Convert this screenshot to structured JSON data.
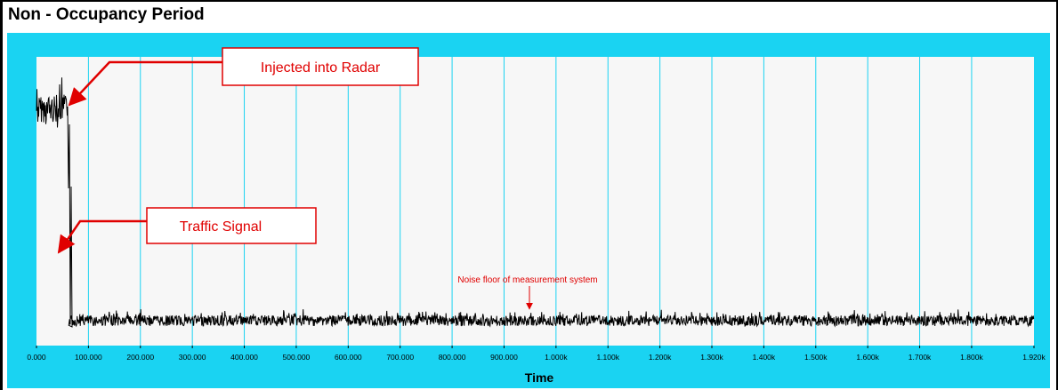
{
  "panel": {
    "title": "Non - Occupancy Period"
  },
  "chart_data": {
    "type": "line",
    "xlabel": "Time",
    "ylabel": "",
    "xlim": [
      0,
      1920000
    ],
    "grid": true,
    "tick_values": [
      0,
      100000,
      200000,
      300000,
      400000,
      500000,
      600000,
      700000,
      800000,
      900000,
      1000000,
      1100000,
      1200000,
      1300000,
      1400000,
      1500000,
      1600000,
      1700000,
      1800000,
      1920000
    ],
    "tick_labels": [
      "0.000",
      "100.000",
      "200.000",
      "300.000",
      "400.000",
      "500.000",
      "600.000",
      "700.000",
      "800.000",
      "900.000",
      "1.000k",
      "1.100k",
      "1.200k",
      "1.300k",
      "1.400k",
      "1.500k",
      "1.600k",
      "1.700k",
      "1.800k",
      "1.920k"
    ],
    "series": [
      {
        "color": "#000000",
        "segments": [
          {
            "x_start": 0,
            "x_end": 60000,
            "level": "high"
          },
          {
            "x_start": 60000,
            "x_end": 62000,
            "level": "spike"
          },
          {
            "x_start": 62000,
            "x_end": 1920000,
            "level": "noise-floor"
          }
        ]
      }
    ],
    "annotations": [
      {
        "id": "injected",
        "text": "Injected into Radar"
      },
      {
        "id": "traffic",
        "text": "Traffic Signal"
      },
      {
        "id": "noise",
        "text": "Noise floor of measurement system"
      }
    ]
  },
  "colors": {
    "frame_bg": "#1ad3f2",
    "plot_bg": "#f7f7f7",
    "grid": "#1ad3f2",
    "trace": "#000000",
    "annotation": "#e00000"
  }
}
